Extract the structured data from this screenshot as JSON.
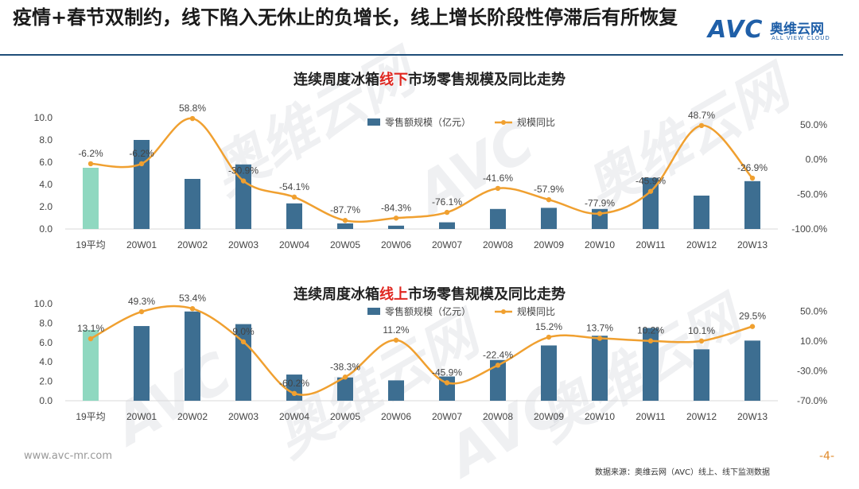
{
  "header": {
    "title": "疫情+春节双制约，线下陷入无休止的负增长，线上增长阶段性停滞后有所恢复",
    "logo_mark": "AVC",
    "logo_cn": "奥维云网",
    "logo_en": "ALL VIEW CLOUD"
  },
  "colors": {
    "bar": "#3d6e91",
    "bar_avg": "#8fd8c0",
    "line": "#f0a030",
    "axis": "#d9d9d9"
  },
  "chart_data": [
    {
      "type": "bar",
      "title_pre": "连续周度冰箱",
      "title_hl": "线下",
      "title_post": "市场零售规模及同比走势",
      "categories": [
        "19平均",
        "20W01",
        "20W02",
        "20W03",
        "20W04",
        "20W05",
        "20W06",
        "20W07",
        "20W08",
        "20W09",
        "20W10",
        "20W11",
        "20W12",
        "20W13"
      ],
      "series": [
        {
          "name": "零售额规模（亿元）",
          "axis": "left",
          "values": [
            5.5,
            8.0,
            4.5,
            5.8,
            2.3,
            0.5,
            0.3,
            0.6,
            1.8,
            1.9,
            1.8,
            4.6,
            3.0,
            4.3
          ]
        },
        {
          "name": "规模同比",
          "axis": "right",
          "type": "line",
          "values": [
            -6.2,
            -6.2,
            58.8,
            -30.9,
            -54.1,
            -87.7,
            -84.3,
            -76.1,
            -41.6,
            -57.9,
            -77.9,
            -45.9,
            48.7,
            -26.9
          ]
        }
      ],
      "labels": [
        "-6.2%",
        "-6.2%",
        "58.8%",
        "-30.9%",
        "-54.1%",
        "-87.7%",
        "-84.3%",
        "-76.1%",
        "-41.6%",
        "-57.9%",
        "-77.9%",
        "-45.9%",
        "48.7%",
        "-26.9%"
      ],
      "y_left": {
        "min": 0,
        "max": 10,
        "ticks": [
          "0.0",
          "2.0",
          "4.0",
          "6.0",
          "8.0",
          "10.0"
        ]
      },
      "y_right": {
        "min": -100,
        "max": 60,
        "ticks": [
          {
            "v": -100,
            "t": "-100.0%"
          },
          {
            "v": -50,
            "t": "-50.0%"
          },
          {
            "v": 0,
            "t": "0.0%"
          },
          {
            "v": 50,
            "t": "50.0%"
          }
        ]
      },
      "legend": "top-right"
    },
    {
      "type": "bar",
      "title_pre": "连续周度冰箱",
      "title_hl": "线上",
      "title_post": "市场零售规模及同比走势",
      "categories": [
        "19平均",
        "20W01",
        "20W02",
        "20W03",
        "20W04",
        "20W05",
        "20W06",
        "20W07",
        "20W08",
        "20W09",
        "20W10",
        "20W11",
        "20W12",
        "20W13"
      ],
      "series": [
        {
          "name": "零售额规模（亿元）",
          "axis": "left",
          "values": [
            7.3,
            7.7,
            9.2,
            7.9,
            2.7,
            2.4,
            2.1,
            2.5,
            4.2,
            5.7,
            6.7,
            7.5,
            5.3,
            6.2
          ]
        },
        {
          "name": "规模同比",
          "axis": "right",
          "type": "line",
          "values": [
            13.1,
            49.3,
            53.4,
            9.0,
            -60.2,
            -38.3,
            11.2,
            -45.9,
            -22.4,
            15.2,
            13.7,
            10.2,
            10.1,
            29.5
          ]
        }
      ],
      "labels": [
        "13.1%",
        "49.3%",
        "53.4%",
        "9.0%",
        "-60.2%",
        "-38.3%",
        "11.2%",
        "-45.9%",
        "-22.4%",
        "15.2%",
        "13.7%",
        "10.2%",
        "10.1%",
        "29.5%"
      ],
      "y_left": {
        "min": 0,
        "max": 10,
        "ticks": [
          "0.0",
          "2.0",
          "4.0",
          "6.0",
          "8.0",
          "10.0"
        ]
      },
      "y_right": {
        "min": -70,
        "max": 60,
        "ticks": [
          {
            "v": -70,
            "t": "-70.0%"
          },
          {
            "v": -30,
            "t": "-30.0%"
          },
          {
            "v": 10,
            "t": "10.0%"
          },
          {
            "v": 50,
            "t": "50.0%"
          }
        ]
      },
      "legend": "top-center"
    }
  ],
  "footer": {
    "url": "www.avc-mr.com",
    "page": "-4-",
    "source": "数据来源：奥维云网（AVC）线上、线下监测数据"
  },
  "watermarks": [
    "奥维云网",
    "AVC",
    "ALL VIEW CLOUD"
  ]
}
